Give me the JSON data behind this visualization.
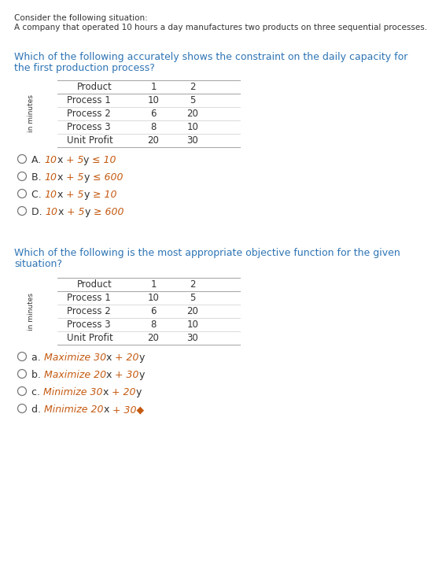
{
  "bg_color": "#ffffff",
  "banner_color": "#f0ddd5",
  "intro_line1": "Consider the following situation:",
  "intro_line2": "A company that operated 10 hours a day manufactures two products on three sequential processes.",
  "q1_line1": "Which of the following accurately shows the constraint on the daily capacity for",
  "q1_line2": "the first production process?",
  "q_color": "#2e74b5",
  "table_headers": [
    "Product",
    "1",
    "2"
  ],
  "table_rows": [
    [
      "Process 1",
      "10",
      "5"
    ],
    [
      "Process 2",
      "6",
      "20"
    ],
    [
      "Process 3",
      "8",
      "10"
    ],
    [
      "Unit Profit",
      "20",
      "30"
    ]
  ],
  "q1_options": [
    [
      "A. ",
      "10",
      "x",
      " + 5",
      "y",
      " ≤ 10"
    ],
    [
      "B. ",
      "10",
      "x",
      " + 5",
      "y",
      " ≤ 600"
    ],
    [
      "C. ",
      "10",
      "x",
      " + 5",
      "y",
      " ≥ 10"
    ],
    [
      "D. ",
      "10",
      "x",
      " + 5",
      "y",
      " ≥ 600"
    ]
  ],
  "q2_line1": "Which of the following is the most appropriate objective function for the given",
  "q2_line2": "situation?",
  "q2_options": [
    [
      "a. ",
      "Maximize 30",
      "x",
      " + 20",
      "y"
    ],
    [
      "b. ",
      "Maximize 20",
      "x",
      " + 30",
      "y"
    ],
    [
      "c. ",
      "Minimize 30",
      "x",
      " + 20",
      "y"
    ],
    [
      "d. ",
      "Minimize 20",
      "x",
      " + 30◆"
    ]
  ],
  "text_color": "#333333",
  "italic_color": "#c55a11",
  "circle_color": "#777777",
  "intro_fs": 7.5,
  "q_fs": 9.0,
  "table_fs": 8.5,
  "opt_fs": 9.0
}
